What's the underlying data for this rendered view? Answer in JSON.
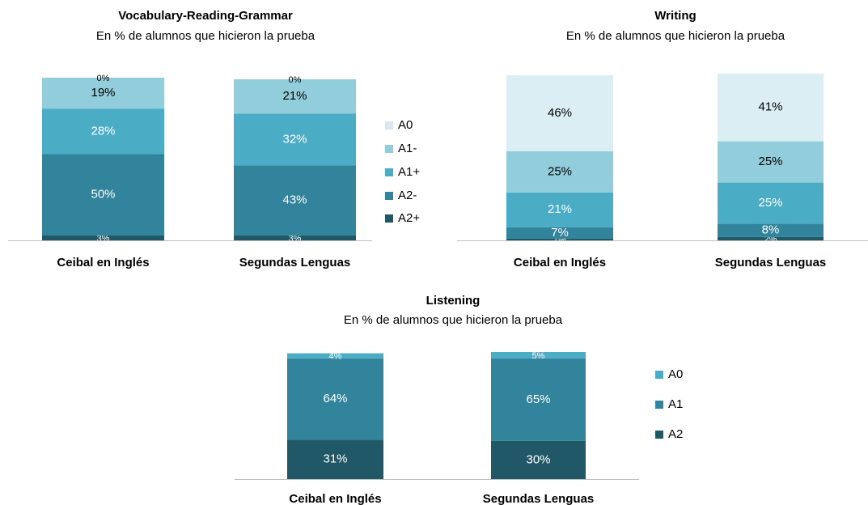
{
  "chart_data": [
    {
      "type": "stacked-bar",
      "title": "Vocabulary-Reading-Grammar",
      "subtitle": "En % de alumnos que hicieron la prueba",
      "categories": [
        "Ceibal en Inglés",
        "Segundas Lenguas"
      ],
      "legend": "right",
      "series": [
        {
          "name": "A2+",
          "color": "#215868",
          "values": [
            3,
            3
          ],
          "value_labels": [
            "3%",
            "3%"
          ]
        },
        {
          "name": "A2-",
          "color": "#31849b",
          "values": [
            50,
            43
          ],
          "value_labels": [
            "50%",
            "43%"
          ]
        },
        {
          "name": "A1+",
          "color": "#4bacc6",
          "values": [
            28,
            32
          ],
          "value_labels": [
            "28%",
            "32%"
          ]
        },
        {
          "name": "A1-",
          "color": "#92cddc",
          "values": [
            19,
            21
          ],
          "value_labels": [
            "19%",
            "21%"
          ]
        },
        {
          "name": "A0",
          "color": "#dbe5f1",
          "values": [
            0,
            0
          ],
          "value_labels": [
            "0%",
            "0%"
          ]
        }
      ]
    },
    {
      "type": "stacked-bar",
      "title": "Writing",
      "subtitle": "En % de alumnos que hicieron la prueba",
      "categories": [
        "Ceibal en Inglés",
        "Segundas Lenguas"
      ],
      "series": [
        {
          "color": "#215868",
          "values": [
            1,
            2
          ],
          "value_labels": [
            "1%",
            "2%"
          ]
        },
        {
          "color": "#31849b",
          "values": [
            7,
            8
          ],
          "value_labels": [
            "7%",
            "8%"
          ]
        },
        {
          "color": "#4bacc6",
          "values": [
            21,
            25
          ],
          "value_labels": [
            "21%",
            "25%"
          ]
        },
        {
          "color": "#92cddc",
          "values": [
            25,
            25
          ],
          "value_labels": [
            "25%",
            "25%"
          ]
        },
        {
          "color": "#daeef3",
          "values": [
            46,
            41
          ],
          "value_labels": [
            "46%",
            "41%"
          ]
        }
      ]
    },
    {
      "type": "stacked-bar",
      "title": "Listening",
      "subtitle": "En % de alumnos que hicieron la prueba",
      "categories": [
        "Ceibal en Inglés",
        "Segundas Lenguas"
      ],
      "legend": "right",
      "series": [
        {
          "name": "A2",
          "color": "#215868",
          "values": [
            31,
            30
          ],
          "value_labels": [
            "31%",
            "30%"
          ]
        },
        {
          "name": "A1",
          "color": "#31849b",
          "values": [
            64,
            65
          ],
          "value_labels": [
            "64%",
            "65%"
          ]
        },
        {
          "name": "A0",
          "color": "#4bacc6",
          "values": [
            4,
            5
          ],
          "value_labels": [
            "4%",
            "5%"
          ]
        }
      ]
    }
  ]
}
